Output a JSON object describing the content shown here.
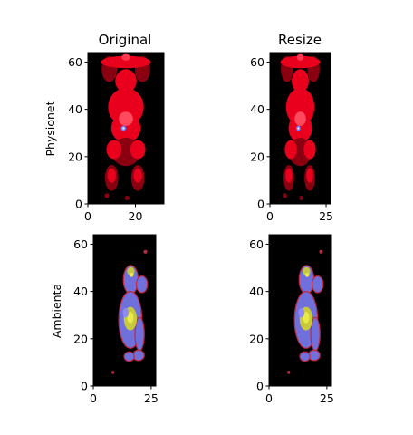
{
  "chart_data": {
    "type": "heatmap",
    "column_titles": [
      "Original",
      "Resize"
    ],
    "row_labels": [
      "Physionet",
      "Ambienta"
    ],
    "panels": [
      {
        "row": 0,
        "col": 0,
        "xlim": [
          0,
          32
        ],
        "ylim": [
          0,
          64
        ],
        "xticks": [
          0,
          20
        ],
        "yticks": [
          0,
          20,
          40,
          60
        ],
        "colormap": "hot-red"
      },
      {
        "row": 0,
        "col": 1,
        "xlim": [
          0,
          27
        ],
        "ylim": [
          0,
          64
        ],
        "xticks": [
          0,
          25
        ],
        "yticks": [
          0,
          20,
          40,
          60
        ],
        "colormap": "hot-red"
      },
      {
        "row": 1,
        "col": 0,
        "xlim": [
          0,
          27
        ],
        "ylim": [
          0,
          64
        ],
        "xticks": [
          0,
          25
        ],
        "yticks": [
          0,
          20,
          40,
          60
        ],
        "colormap": "thermal-blue-yellow"
      },
      {
        "row": 1,
        "col": 1,
        "xlim": [
          0,
          27
        ],
        "ylim": [
          0,
          64
        ],
        "xticks": [
          0,
          25
        ],
        "yticks": [
          0,
          20,
          40,
          60
        ],
        "colormap": "thermal-blue-yellow"
      }
    ]
  }
}
